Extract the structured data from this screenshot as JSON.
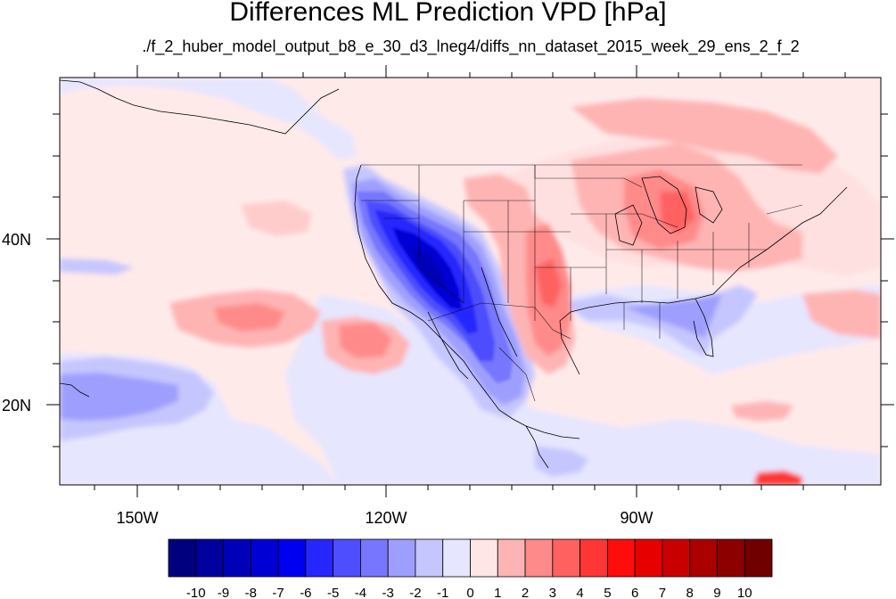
{
  "title": "Differences ML Prediction VPD [hPa]",
  "subtitle": "./f_2_huber_model_output_b8_e_30_d3_lneg4/diffs_nn_dataset_2015_week_29_ens_2_f_2",
  "axes": {
    "lon_labels": [
      "150W",
      "120W",
      "90W"
    ],
    "lat_labels": [
      "40N",
      "20N"
    ]
  },
  "colorbar": {
    "labels": [
      "-10",
      "-9",
      "-8",
      "-7",
      "-6",
      "-5",
      "-4",
      "-3",
      "-2",
      "-1",
      "0",
      "1",
      "2",
      "3",
      "4",
      "5",
      "6",
      "7",
      "8",
      "9",
      "10"
    ],
    "colors": [
      "#00007f",
      "#00009c",
      "#0000b8",
      "#0000d4",
      "#0000f0",
      "#2626ff",
      "#4e4eff",
      "#7676ff",
      "#9e9eff",
      "#c6c6ff",
      "#e6e6ff",
      "#ffe6e6",
      "#ffb4b4",
      "#ff8a8a",
      "#ff6060",
      "#ff3636",
      "#ff0c0c",
      "#e60000",
      "#c80000",
      "#aa0000",
      "#8c0000",
      "#700000"
    ]
  },
  "colors": {
    "background": "#ffeaea",
    "coastline": "#000000"
  }
}
